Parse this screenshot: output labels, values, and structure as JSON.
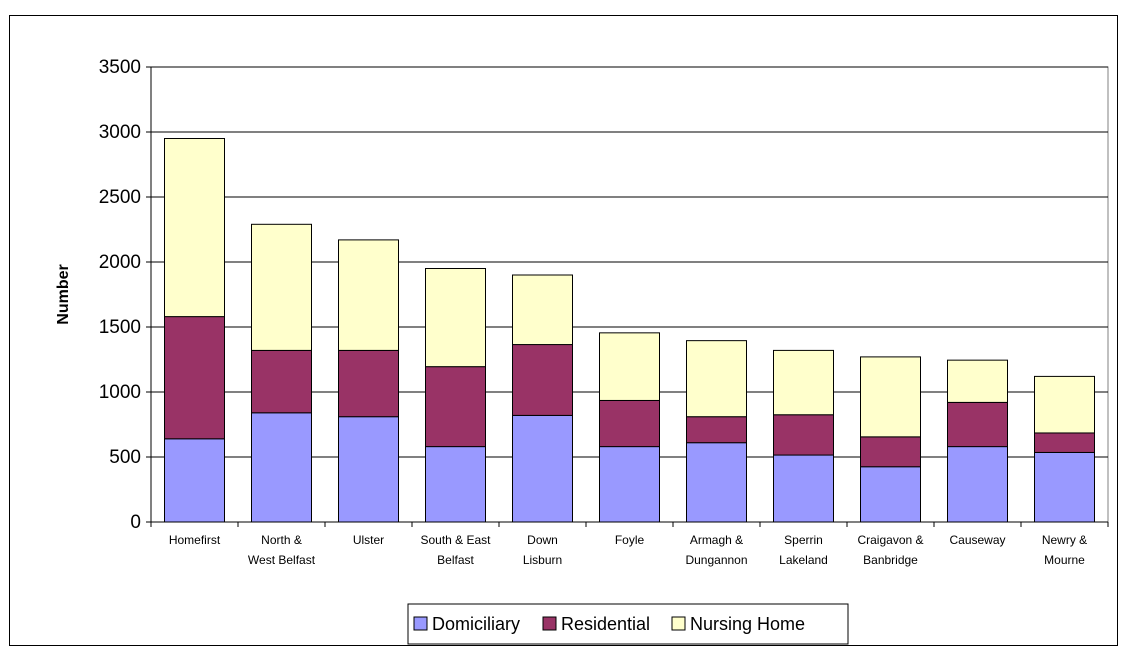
{
  "chart_data": {
    "type": "bar",
    "stacked": true,
    "ylabel": "Number",
    "xlabel": "",
    "ylim": [
      0,
      3500
    ],
    "yticks": [
      0,
      500,
      1000,
      1500,
      2000,
      2500,
      3000,
      3500
    ],
    "grid": true,
    "legend": "bottom",
    "categories": [
      [
        "Homefirst"
      ],
      [
        "North &",
        "West Belfast"
      ],
      [
        "Ulster"
      ],
      [
        "South & East",
        "Belfast"
      ],
      [
        "Down",
        "Lisburn"
      ],
      [
        "Foyle"
      ],
      [
        "Armagh &",
        "Dungannon"
      ],
      [
        "Sperrin",
        "Lakeland"
      ],
      [
        "Craigavon &",
        "Banbridge"
      ],
      [
        "Causeway"
      ],
      [
        "Newry &",
        "Mourne"
      ]
    ],
    "series": [
      {
        "name": "Domiciliary",
        "color": "#9999ff",
        "values": [
          640,
          840,
          810,
          580,
          820,
          580,
          610,
          515,
          425,
          580,
          535
        ]
      },
      {
        "name": "Residential",
        "color": "#993366",
        "values": [
          940,
          480,
          510,
          615,
          545,
          355,
          200,
          310,
          230,
          340,
          150
        ]
      },
      {
        "name": "Nursing Home",
        "color": "#ffffcc",
        "values": [
          1370,
          970,
          850,
          755,
          535,
          520,
          585,
          495,
          615,
          325,
          435
        ]
      }
    ]
  }
}
